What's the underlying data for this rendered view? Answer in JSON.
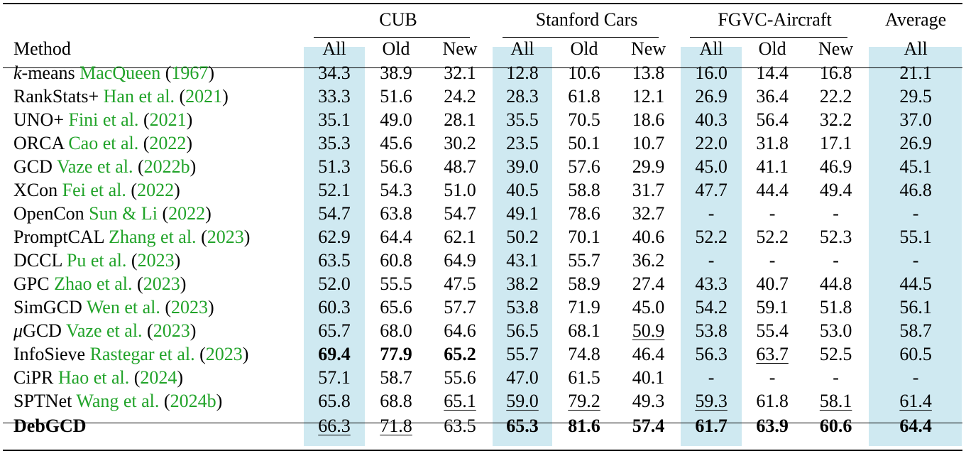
{
  "columns": {
    "method": "Method",
    "groups": [
      "CUB",
      "Stanford Cars",
      "FGVC-Aircraft",
      "Average"
    ],
    "sub": [
      "All",
      "Old",
      "New",
      "All",
      "Old",
      "New",
      "All",
      "Old",
      "New",
      "All"
    ]
  },
  "rows": [
    {
      "pre": "k",
      "name": "-means",
      "cite": "MacQueen",
      "year": "1967",
      "vals": [
        "34.3",
        "38.9",
        "32.1",
        "12.8",
        "10.6",
        "13.8",
        "16.0",
        "14.4",
        "16.8",
        "21.1"
      ]
    },
    {
      "name": "RankStats+",
      "cite": "Han et al.",
      "year": "2021",
      "vals": [
        "33.3",
        "51.6",
        "24.2",
        "28.3",
        "61.8",
        "12.1",
        "26.9",
        "36.4",
        "22.2",
        "29.5"
      ]
    },
    {
      "name": "UNO+",
      "cite": "Fini et al.",
      "year": "2021",
      "vals": [
        "35.1",
        "49.0",
        "28.1",
        "35.5",
        "70.5",
        "18.6",
        "40.3",
        "56.4",
        "32.2",
        "37.0"
      ]
    },
    {
      "name": "ORCA",
      "cite": "Cao et al.",
      "year": "2022",
      "vals": [
        "35.3",
        "45.6",
        "30.2",
        "23.5",
        "50.1",
        "10.7",
        "22.0",
        "31.8",
        "17.1",
        "26.9"
      ]
    },
    {
      "name": "GCD",
      "cite": "Vaze et al.",
      "year": "2022b",
      "vals": [
        "51.3",
        "56.6",
        "48.7",
        "39.0",
        "57.6",
        "29.9",
        "45.0",
        "41.1",
        "46.9",
        "45.1"
      ]
    },
    {
      "name": "XCon",
      "cite": "Fei et al.",
      "year": "2022",
      "vals": [
        "52.1",
        "54.3",
        "51.0",
        "40.5",
        "58.8",
        "31.7",
        "47.7",
        "44.4",
        "49.4",
        "46.8"
      ]
    },
    {
      "name": "OpenCon",
      "cite": "Sun & Li",
      "year": "2022",
      "vals": [
        "54.7",
        "63.8",
        "54.7",
        "49.1",
        "78.6",
        "32.7",
        "-",
        "-",
        "-",
        "-"
      ]
    },
    {
      "name": "PromptCAL",
      "cite": "Zhang et al.",
      "year": "2023",
      "vals": [
        "62.9",
        "64.4",
        "62.1",
        "50.2",
        "70.1",
        "40.6",
        "52.2",
        "52.2",
        "52.3",
        "55.1"
      ]
    },
    {
      "name": "DCCL",
      "cite": "Pu et al.",
      "year": "2023",
      "vals": [
        "63.5",
        "60.8",
        "64.9",
        "43.1",
        "55.7",
        "36.2",
        "-",
        "-",
        "-",
        "-"
      ]
    },
    {
      "name": "GPC",
      "cite": "Zhao et al.",
      "year": "2023",
      "vals": [
        "52.0",
        "55.5",
        "47.5",
        "38.2",
        "58.9",
        "27.4",
        "43.3",
        "40.7",
        "44.8",
        "44.5"
      ]
    },
    {
      "name": "SimGCD",
      "cite": "Wen et al.",
      "year": "2023",
      "vals": [
        "60.3",
        "65.6",
        "57.7",
        "53.8",
        "71.9",
        "45.0",
        "54.2",
        "59.1",
        "51.8",
        "56.1"
      ]
    },
    {
      "pre": "μ",
      "name": "GCD",
      "cite": "Vaze et al.",
      "year": "2023",
      "vals": [
        "65.7",
        "68.0",
        "64.6",
        "56.5",
        "68.1",
        "50.9",
        "53.8",
        "55.4",
        "53.0",
        "58.7"
      ]
    },
    {
      "name": "InfoSieve",
      "cite": "Rastegar et al.",
      "year": "2023",
      "vals": [
        "69.4",
        "77.9",
        "65.2",
        "55.7",
        "74.8",
        "46.4",
        "56.3",
        "63.7",
        "52.5",
        "60.5"
      ]
    },
    {
      "name": "CiPR",
      "cite": "Hao et al.",
      "year": "2024",
      "vals": [
        "57.1",
        "58.7",
        "55.6",
        "47.0",
        "61.5",
        "40.1",
        "-",
        "-",
        "-",
        "-"
      ]
    },
    {
      "name": "SPTNet",
      "cite": "Wang et al.",
      "year": "2024b",
      "vals": [
        "65.8",
        "68.8",
        "65.1",
        "59.0",
        "79.2",
        "49.3",
        "59.3",
        "61.8",
        "58.1",
        "61.4"
      ]
    },
    {
      "name": "DebGCD",
      "bold": true,
      "vals": [
        "66.3",
        "71.8",
        "63.5",
        "65.3",
        "81.6",
        "57.4",
        "61.7",
        "63.9",
        "60.6",
        "64.4"
      ]
    }
  ]
}
